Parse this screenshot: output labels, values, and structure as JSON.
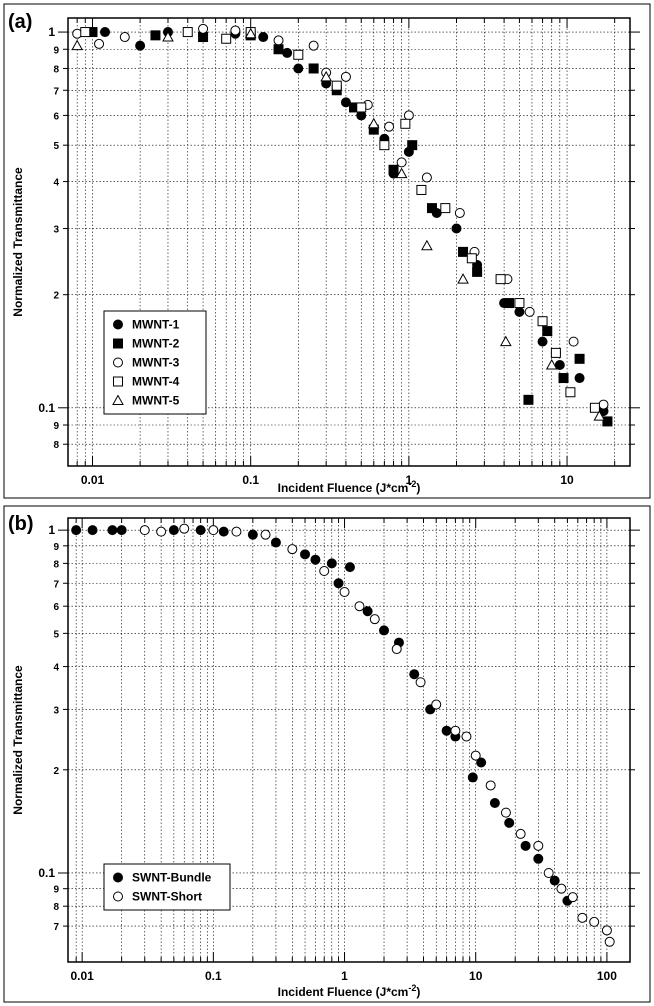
{
  "chart_data": [
    {
      "type": "scatter",
      "panel_label": "(a)",
      "ylabel": "Normalized Transmittance",
      "xlabel": [
        "Incident Fluence (J*cm",
        "-2",
        ")"
      ],
      "log_x": true,
      "log_y": true,
      "grid": true,
      "legend": "lower left",
      "xlim": [
        0.007,
        25
      ],
      "ylim": [
        0.07,
        1.09
      ],
      "xticks": [
        0.01,
        0.1,
        1,
        10
      ],
      "x_minor_ticks": [
        0.008,
        0.009,
        0.02,
        0.03,
        0.04,
        0.05,
        0.06,
        0.07,
        0.08,
        0.09,
        0.2,
        0.3,
        0.4,
        0.5,
        0.6,
        0.7,
        0.8,
        0.9,
        2,
        3,
        4,
        5,
        6,
        7,
        8,
        9,
        20
      ],
      "yticks": [
        1,
        {
          "value": 0.9,
          "label": "9"
        },
        {
          "value": 0.8,
          "label": "8"
        },
        {
          "value": 0.7,
          "label": "7"
        },
        {
          "value": 0.6,
          "label": "6"
        },
        {
          "value": 0.5,
          "label": "5"
        },
        {
          "value": 0.4,
          "label": "4"
        },
        {
          "value": 0.3,
          "label": "3"
        },
        {
          "value": 0.2,
          "label": "2"
        },
        0.1,
        {
          "value": 0.09,
          "label": "9"
        },
        {
          "value": 0.08,
          "label": "8"
        }
      ],
      "series": [
        {
          "name": "MWNT-1",
          "color": "#000000",
          "marker": "filled-circle",
          "x": [
            0.009,
            0.012,
            0.02,
            0.03,
            0.05,
            0.08,
            0.12,
            0.17,
            0.2,
            0.3,
            0.4,
            0.5,
            0.7,
            0.8,
            1,
            1.5,
            2,
            2.7,
            4,
            5,
            7,
            9,
            12,
            17
          ],
          "values": [
            1,
            1,
            0.92,
            1,
            0.98,
            0.99,
            0.97,
            0.88,
            0.8,
            0.73,
            0.65,
            0.6,
            0.52,
            0.42,
            0.48,
            0.33,
            0.3,
            0.24,
            0.19,
            0.18,
            0.15,
            0.13,
            0.12,
            0.098
          ]
        },
        {
          "name": "MWNT-2",
          "color": "#000000",
          "marker": "filled-square",
          "x": [
            0.01,
            0.025,
            0.05,
            0.1,
            0.15,
            0.25,
            0.35,
            0.45,
            0.6,
            0.8,
            1.05,
            1.4,
            2.2,
            2.7,
            4.3,
            5.7,
            7.5,
            9.5,
            12,
            18
          ],
          "values": [
            1,
            0.98,
            0.97,
            0.98,
            0.9,
            0.8,
            0.7,
            0.63,
            0.55,
            0.43,
            0.5,
            0.34,
            0.26,
            0.23,
            0.19,
            0.105,
            0.16,
            0.12,
            0.135,
            0.092
          ]
        },
        {
          "name": "MWNT-3",
          "color": "#000000",
          "marker": "open-circle",
          "x": [
            0.008,
            0.011,
            0.016,
            0.05,
            0.08,
            0.15,
            0.25,
            0.3,
            0.4,
            0.55,
            0.75,
            0.9,
            1,
            1.3,
            2.1,
            2.6,
            4.2,
            5.8,
            8.5,
            11,
            17
          ],
          "values": [
            0.99,
            0.93,
            0.97,
            1.02,
            1.01,
            0.95,
            0.92,
            0.78,
            0.76,
            0.64,
            0.56,
            0.45,
            0.6,
            0.41,
            0.33,
            0.26,
            0.22,
            0.18,
            0.14,
            0.15,
            0.102
          ]
        },
        {
          "name": "MWNT-4",
          "color": "#000000",
          "marker": "open-square",
          "x": [
            0.009,
            0.04,
            0.07,
            0.1,
            0.2,
            0.35,
            0.5,
            0.7,
            0.95,
            1.2,
            1.7,
            2.5,
            3.8,
            5,
            7,
            8.5,
            10.5,
            15
          ],
          "values": [
            1,
            1,
            0.96,
            1,
            0.87,
            0.72,
            0.63,
            0.5,
            0.57,
            0.38,
            0.34,
            0.25,
            0.22,
            0.19,
            0.17,
            0.14,
            0.11,
            0.1
          ]
        },
        {
          "name": "MWNT-5",
          "color": "#000000",
          "marker": "open-triangle",
          "x": [
            0.008,
            0.03,
            0.1,
            0.3,
            0.6,
            0.9,
            1.3,
            2.2,
            4.1,
            8,
            16
          ],
          "values": [
            0.92,
            0.97,
            0.99,
            0.76,
            0.57,
            0.42,
            0.27,
            0.22,
            0.15,
            0.13,
            0.095
          ]
        }
      ]
    },
    {
      "type": "scatter",
      "panel_label": "(b)",
      "ylabel": "Normalized Transmittance",
      "xlabel": [
        "Incident Fluence (J*cm",
        "-2",
        ")"
      ],
      "log_x": true,
      "log_y": true,
      "grid": true,
      "legend": "lower left",
      "xlim": [
        0.0078,
        150
      ],
      "ylim": [
        0.055,
        1.085
      ],
      "xticks": [
        0.01,
        0.1,
        1,
        10,
        100
      ],
      "x_minor_ticks": [
        0.009,
        0.02,
        0.03,
        0.04,
        0.05,
        0.06,
        0.07,
        0.08,
        0.09,
        0.2,
        0.3,
        0.4,
        0.5,
        0.6,
        0.7,
        0.8,
        0.9,
        2,
        3,
        4,
        5,
        6,
        7,
        8,
        9,
        20,
        30,
        40,
        50,
        60,
        70,
        80,
        90
      ],
      "yticks": [
        1,
        {
          "value": 0.9,
          "label": "9"
        },
        {
          "value": 0.8,
          "label": "8"
        },
        {
          "value": 0.7,
          "label": "7"
        },
        {
          "value": 0.6,
          "label": "6"
        },
        {
          "value": 0.5,
          "label": "5"
        },
        {
          "value": 0.4,
          "label": "4"
        },
        {
          "value": 0.3,
          "label": "3"
        },
        {
          "value": 0.2,
          "label": "2"
        },
        0.1,
        {
          "value": 0.09,
          "label": "9"
        },
        {
          "value": 0.08,
          "label": "8"
        },
        {
          "value": 0.07,
          "label": "7"
        }
      ],
      "series": [
        {
          "name": "SWNT-Bundle",
          "color": "#000000",
          "marker": "filled-circle",
          "x": [
            0.009,
            0.012,
            0.017,
            0.02,
            0.05,
            0.08,
            0.12,
            0.2,
            0.3,
            0.5,
            0.6,
            0.8,
            1.1,
            0.9,
            1.5,
            2,
            2.6,
            3.4,
            4.5,
            6,
            7,
            9.5,
            11,
            14,
            18,
            24,
            30,
            40,
            50
          ],
          "values": [
            1,
            1,
            1,
            1,
            1,
            1,
            0.99,
            0.97,
            0.92,
            0.85,
            0.82,
            0.8,
            0.78,
            0.7,
            0.58,
            0.51,
            0.47,
            0.38,
            0.3,
            0.26,
            0.25,
            0.19,
            0.21,
            0.16,
            0.14,
            0.12,
            0.11,
            0.095,
            0.083
          ]
        },
        {
          "name": "SWNT-Short",
          "color": "#000000",
          "marker": "open-circle",
          "x": [
            0.03,
            0.04,
            0.06,
            0.1,
            0.15,
            0.25,
            0.4,
            0.7,
            1,
            1.3,
            1.7,
            2.5,
            3.8,
            5,
            7,
            8.5,
            10,
            13,
            17,
            22,
            30,
            36,
            45,
            55,
            65,
            80,
            100,
            105
          ],
          "values": [
            1,
            0.99,
            1.01,
            1,
            0.99,
            0.97,
            0.88,
            0.76,
            0.66,
            0.6,
            0.55,
            0.45,
            0.36,
            0.31,
            0.26,
            0.25,
            0.22,
            0.18,
            0.15,
            0.13,
            0.12,
            0.1,
            0.09,
            0.085,
            0.074,
            0.072,
            0.068,
            0.063
          ]
        }
      ]
    }
  ]
}
